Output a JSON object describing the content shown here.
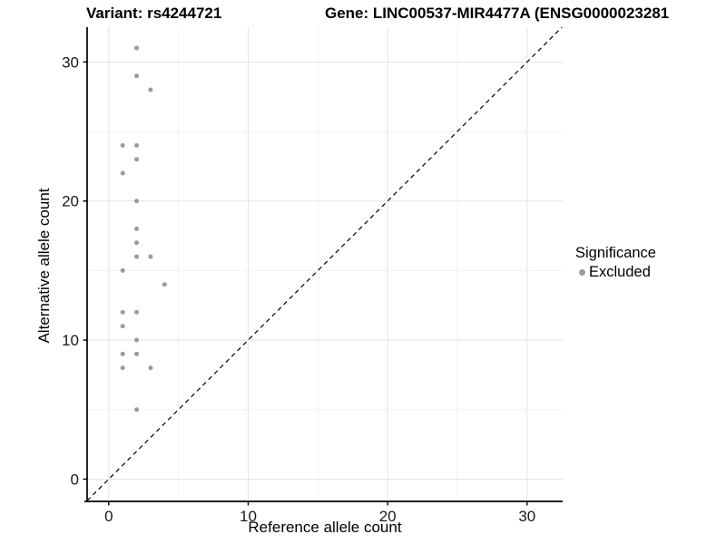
{
  "titles": {
    "variant": "Variant: rs4244721",
    "gene": "Gene: LINC00537-MIR4477A (ENSG0000023281"
  },
  "chart_data": {
    "type": "scatter",
    "xlabel": "Reference allele count",
    "ylabel": "Alternative allele count",
    "xlim": [
      -1.55,
      32.55
    ],
    "ylim": [
      -1.6,
      32.5
    ],
    "x_ticks": [
      0,
      10,
      20,
      30
    ],
    "y_ticks": [
      0,
      10,
      20,
      30
    ],
    "x_minor_ticks": [
      5,
      15,
      25
    ],
    "y_minor_ticks": [
      5,
      15,
      25
    ],
    "grid": true,
    "identity_line": {
      "style": "dashed",
      "from": [
        -1.55,
        -1.55
      ],
      "to": [
        32.5,
        32.5
      ],
      "color": "#000000"
    },
    "series": [
      {
        "name": "Excluded",
        "color": "#9a9a9a",
        "points": [
          [
            2,
            31
          ],
          [
            2,
            29
          ],
          [
            3,
            28
          ],
          [
            1,
            24
          ],
          [
            2,
            24
          ],
          [
            2,
            23
          ],
          [
            1,
            22
          ],
          [
            2,
            20
          ],
          [
            2,
            18
          ],
          [
            2,
            17
          ],
          [
            2,
            16
          ],
          [
            3,
            16
          ],
          [
            1,
            15
          ],
          [
            4,
            14
          ],
          [
            1,
            12
          ],
          [
            2,
            12
          ],
          [
            1,
            11
          ],
          [
            2,
            10
          ],
          [
            1,
            9
          ],
          [
            2,
            9
          ],
          [
            1,
            8
          ],
          [
            3,
            8
          ],
          [
            2,
            5
          ]
        ]
      }
    ],
    "legend": {
      "title": "Significance",
      "position": "right",
      "items": [
        {
          "label": "Excluded",
          "color": "#9a9a9a"
        }
      ]
    },
    "colors": {
      "grid_major": "#e3e3e3",
      "grid_minor": "#f1f1f1",
      "axis_line": "#000000",
      "tick_label": "#1a1a1a",
      "point": "#9a9a9a"
    }
  }
}
